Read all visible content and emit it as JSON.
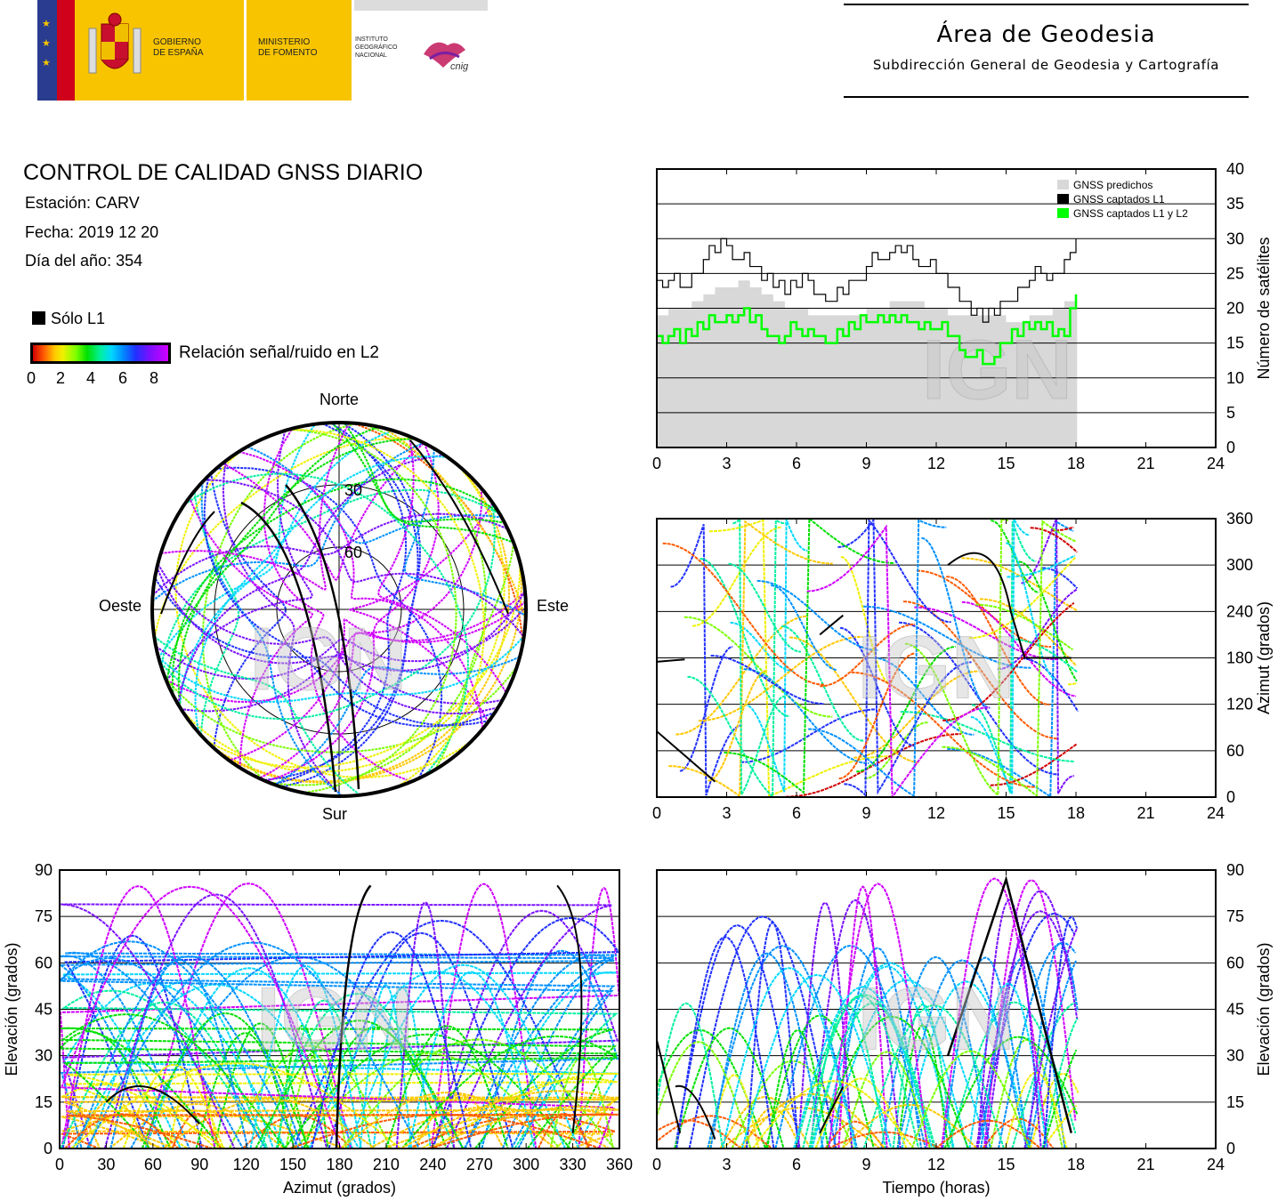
{
  "header": {
    "gov_line1": "GOBIERNO",
    "gov_line2": "DE ESPAÑA",
    "min_line1": "MINISTERIO",
    "min_line2": "DE FOMENTO",
    "inst_line1": "INSTITUTO",
    "inst_line2": "GEOGRÁFICO",
    "inst_line3": "NACIONAL",
    "cnig": "cnig",
    "area_title": "Área de Geodesia",
    "area_subtitle": "Subdirección General de Geodesia y Cartografía"
  },
  "report": {
    "title": "CONTROL DE CALIDAD GNSS DIARIO",
    "station": "Estación: CARV",
    "date": "Fecha: 2019 12 20",
    "doy": "Día del año: 354",
    "legend_l1": "Sólo L1",
    "snr_label": "Relación señal/ruido en L2",
    "snr_ticks": [
      "0",
      "2",
      "4",
      "6",
      "8"
    ]
  },
  "watermark": "IGN",
  "colors": {
    "predicted": "#d8d8d8",
    "l1": "#000000",
    "l1l2": "#00ff00",
    "snr_scale": [
      "#d10000",
      "#ff5a00",
      "#ffc800",
      "#f0f000",
      "#7bff00",
      "#00e000",
      "#00f0a0",
      "#00d8ff",
      "#0090ff",
      "#2030ff",
      "#7a10ff",
      "#d000ff"
    ]
  },
  "chart_data": [
    {
      "type": "line",
      "id": "satellites-count",
      "ylabel": "Número de satélites",
      "xlim": [
        0,
        24
      ],
      "ylim": [
        0,
        40
      ],
      "x_ticks": [
        "0",
        "3",
        "6",
        "9",
        "12",
        "15",
        "18",
        "21",
        "24"
      ],
      "y_ticks": [
        "0",
        "5",
        "10",
        "15",
        "20",
        "25",
        "30",
        "35",
        "40"
      ],
      "legend_position": "top-right",
      "series": [
        {
          "name": "GNSS predichos",
          "x": [
            0,
            0.5,
            1,
            1.5,
            2,
            2.5,
            3,
            3.5,
            4,
            4.5,
            5,
            5.5,
            6,
            6.5,
            7,
            7.5,
            8,
            8.5,
            9,
            9.5,
            10,
            10.5,
            11,
            11.5,
            12,
            12.5,
            13,
            13.5,
            14,
            14.5,
            15,
            15.5,
            16,
            16.5,
            17,
            17.5,
            18
          ],
          "values": [
            19,
            20,
            20,
            21,
            22,
            23,
            23,
            24,
            23,
            22,
            21,
            20,
            20,
            19,
            19,
            19,
            19,
            19,
            20,
            20,
            21,
            21,
            21,
            20,
            20,
            19,
            19,
            19,
            19,
            19,
            18,
            18,
            19,
            19,
            20,
            21,
            22
          ]
        },
        {
          "name": "GNSS captados L1",
          "x": [
            0,
            0.5,
            1,
            1.5,
            2,
            2.5,
            3,
            3.5,
            4,
            4.5,
            5,
            5.5,
            6,
            6.5,
            7,
            7.5,
            8,
            8.5,
            9,
            9.5,
            10,
            10.5,
            11,
            11.5,
            12,
            12.5,
            13,
            13.5,
            14,
            14.5,
            15,
            15.5,
            16,
            16.5,
            17,
            17.5,
            18
          ],
          "values": [
            24,
            24,
            23,
            25,
            27,
            28,
            29,
            27,
            26,
            24,
            23,
            22,
            23,
            24,
            22,
            21,
            22,
            24,
            26,
            27,
            28,
            28,
            27,
            26,
            25,
            23,
            21,
            19,
            18,
            19,
            21,
            23,
            24,
            25,
            25,
            27,
            30
          ]
        },
        {
          "name": "GNSS captados L1 y L2",
          "x": [
            0,
            0.5,
            1,
            1.5,
            2,
            2.5,
            3,
            3.5,
            4,
            4.5,
            5,
            5.5,
            6,
            6.5,
            7,
            7.5,
            8,
            8.5,
            9,
            9.5,
            10,
            10.5,
            11,
            11.5,
            12,
            12.5,
            13,
            13.5,
            14,
            14.5,
            15,
            15.5,
            16,
            16.5,
            17,
            17.5,
            18
          ],
          "values": [
            16,
            16,
            15,
            16,
            17,
            18,
            19,
            19,
            18,
            17,
            16,
            16,
            17,
            17,
            16,
            15,
            16,
            17,
            18,
            19,
            19,
            19,
            18,
            18,
            17,
            16,
            14,
            13,
            12,
            13,
            15,
            16,
            17,
            17,
            16,
            16,
            22
          ]
        }
      ]
    },
    {
      "type": "scatter",
      "id": "sky-plot",
      "labels": {
        "north": "Norte",
        "south": "Sur",
        "east": "Este",
        "west": "Oeste"
      },
      "elevation_rings": [
        "30",
        "60"
      ]
    },
    {
      "type": "scatter",
      "id": "azimuth-time",
      "ylabel": "Azimut (grados)",
      "xlim": [
        0,
        24
      ],
      "ylim": [
        0,
        360
      ],
      "x_ticks": [
        "0",
        "3",
        "6",
        "9",
        "12",
        "15",
        "18",
        "21",
        "24"
      ],
      "y_ticks": [
        "0",
        "60",
        "120",
        "180",
        "240",
        "300",
        "360"
      ]
    },
    {
      "type": "scatter",
      "id": "elevation-azimuth",
      "xlabel": "Azimut (grados)",
      "ylabel": "Elevación (grados)",
      "xlim": [
        0,
        360
      ],
      "ylim": [
        0,
        90
      ],
      "x_ticks": [
        "0",
        "30",
        "60",
        "90",
        "120",
        "150",
        "180",
        "210",
        "240",
        "270",
        "300",
        "330",
        "360"
      ],
      "y_ticks": [
        "0",
        "15",
        "30",
        "45",
        "60",
        "75",
        "90"
      ]
    },
    {
      "type": "scatter",
      "id": "elevation-time",
      "xlabel": "Tiempo (horas)",
      "ylabel": "Elevación (grados)",
      "xlim": [
        0,
        24
      ],
      "ylim": [
        0,
        90
      ],
      "x_ticks": [
        "0",
        "3",
        "6",
        "9",
        "12",
        "15",
        "18",
        "21",
        "24"
      ],
      "y_ticks": [
        "0",
        "15",
        "30",
        "45",
        "60",
        "75",
        "90"
      ]
    }
  ]
}
